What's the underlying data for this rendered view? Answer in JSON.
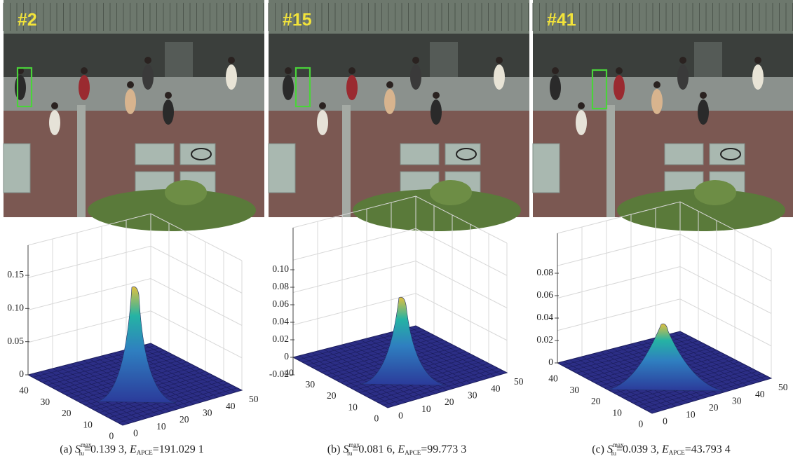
{
  "frames": [
    {
      "label": "#2"
    },
    {
      "label": "#15"
    },
    {
      "label": "#41"
    }
  ],
  "symbols": {
    "s": "S",
    "s_sub": "fu",
    "s_sup": "max",
    "e": "E",
    "e_sub": "APCE"
  },
  "plots": [
    {
      "zticks": [
        "0.15",
        "0.10",
        "0.05",
        "0"
      ],
      "xticks": [
        "40",
        "30",
        "20",
        "10",
        "0"
      ],
      "yticks": [
        "0",
        "10",
        "20",
        "30",
        "40",
        "50"
      ],
      "caption": {
        "label": "(a)",
        "s_value": "=0.139 3,",
        "e_value": "=191.029 1"
      }
    },
    {
      "zticks": [
        "0.10",
        "0.08",
        "0.06",
        "0.04",
        "0.02",
        "0",
        "-0.02"
      ],
      "xticks": [
        "40",
        "30",
        "20",
        "10",
        "0"
      ],
      "yticks": [
        "0",
        "10",
        "20",
        "30",
        "40",
        "50"
      ],
      "caption": {
        "label": "(b)",
        "s_value": "=0.081 6,",
        "e_value": "=99.773 3"
      }
    },
    {
      "zticks": [
        "0.08",
        "0.06",
        "0.04",
        "0.02",
        "0"
      ],
      "xticks": [
        "40",
        "30",
        "20",
        "10",
        "0"
      ],
      "yticks": [
        "0",
        "10",
        "20",
        "30",
        "40",
        "50"
      ],
      "caption": {
        "label": "(c)",
        "s_value": "=0.039 3,",
        "e_value": "=43.793 4"
      }
    }
  ]
}
